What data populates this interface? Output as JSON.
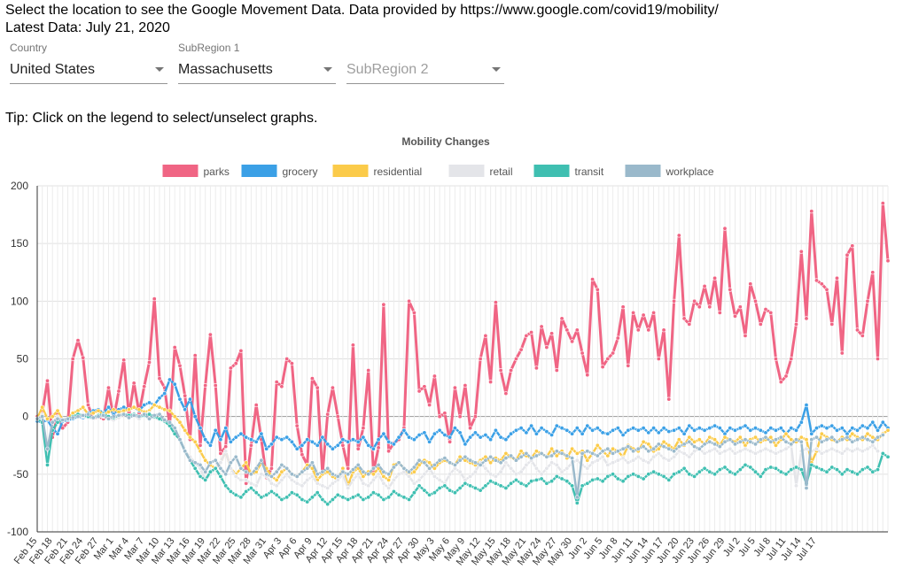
{
  "header": {
    "line1": "Select the location to see the Google Movement Data. Data provided by https://www.google.com/covid19/mobility/",
    "line2": "Latest Data: July 21, 2020"
  },
  "filters": {
    "country": {
      "label": "Country",
      "value": "United States"
    },
    "subregion1": {
      "label": "SubRegion 1",
      "value": "Massachusetts"
    },
    "subregion2": {
      "label": "",
      "placeholder": "SubRegion 2"
    }
  },
  "tip": "Tip: Click on the legend to select/unselect graphs.",
  "chart_data": {
    "type": "line",
    "title": "Mobility Changes",
    "xlabel": "",
    "ylabel": "",
    "ylim": [
      -100,
      200
    ],
    "yticks": [
      -100,
      -50,
      0,
      50,
      100,
      150,
      200
    ],
    "grid": true,
    "legend": "top",
    "x_start": "Feb 15",
    "x_end": "Jul 19",
    "x_tick_labels": [
      "Feb 15",
      "Feb 18",
      "Feb 21",
      "Feb 24",
      "Feb 27",
      "Mar 1",
      "Mar 4",
      "Mar 7",
      "Mar 10",
      "Mar 13",
      "Mar 16",
      "Mar 19",
      "Mar 22",
      "Mar 25",
      "Mar 28",
      "Mar 31",
      "Apr 3",
      "Apr 6",
      "Apr 9",
      "Apr 12",
      "Apr 15",
      "Apr 18",
      "Apr 21",
      "Apr 24",
      "Apr 27",
      "Apr 30",
      "May 3",
      "May 6",
      "May 9",
      "May 12",
      "May 15",
      "May 18",
      "May 21",
      "May 24",
      "May 27",
      "May 30",
      "Jun 2",
      "Jun 5",
      "Jun 8",
      "Jun 11",
      "Jun 14",
      "Jun 17",
      "Jun 20",
      "Jun 23",
      "Jun 26",
      "Jun 29",
      "Jul 2",
      "Jul 5",
      "Jul 8",
      "Jul 11",
      "Jul 14",
      "Jul 17"
    ],
    "series": [
      {
        "name": "parks",
        "color": "#f06584",
        "values": [
          0,
          3,
          31,
          -18,
          2,
          -10,
          -5,
          50,
          66,
          51,
          10,
          -2,
          0,
          -2,
          25,
          -2,
          22,
          49,
          1,
          29,
          3,
          26,
          47,
          102,
          33,
          25,
          -8,
          60,
          44,
          18,
          -20,
          53,
          -25,
          27,
          71,
          27,
          -32,
          -26,
          42,
          46,
          57,
          -58,
          -25,
          10,
          -20,
          -53,
          -45,
          30,
          26,
          50,
          46,
          -8,
          -33,
          -42,
          33,
          25,
          -50,
          2,
          25,
          0,
          -25,
          -45,
          62,
          -28,
          -10,
          40,
          -48,
          -27,
          97,
          -30,
          -23,
          -20,
          -10,
          100,
          90,
          22,
          26,
          10,
          35,
          0,
          3,
          -22,
          25,
          0,
          27,
          -10,
          0,
          50,
          70,
          30,
          99,
          40,
          20,
          40,
          50,
          58,
          70,
          73,
          42,
          78,
          60,
          72,
          40,
          85,
          75,
          65,
          75,
          55,
          36,
          119,
          110,
          43,
          50,
          55,
          68,
          95,
          44,
          90,
          75,
          88,
          75,
          90,
          50,
          75,
          15,
          100,
          157,
          85,
          80,
          100,
          95,
          113,
          95,
          120,
          90,
          163,
          110,
          87,
          95,
          70,
          115,
          100,
          80,
          93,
          90,
          50,
          30,
          35,
          50,
          80,
          143,
          85,
          178,
          118,
          115,
          110,
          80,
          120,
          55,
          140,
          148,
          75,
          70,
          100,
          125,
          50,
          185,
          135
        ]
      },
      {
        "name": "grocery",
        "color": "#3ba0e6",
        "values": [
          -4,
          -5,
          -3,
          -10,
          -15,
          -4,
          -3,
          -2,
          0,
          -1,
          3,
          5,
          6,
          3,
          8,
          2,
          6,
          8,
          6,
          8,
          5,
          10,
          12,
          10,
          16,
          20,
          32,
          28,
          15,
          6,
          15,
          0,
          -10,
          -20,
          -25,
          -12,
          -20,
          -10,
          -22,
          -18,
          -15,
          -18,
          -20,
          -22,
          -15,
          -28,
          -24,
          -18,
          -20,
          -18,
          -22,
          -28,
          -25,
          -20,
          -22,
          -25,
          -18,
          -24,
          -28,
          -25,
          -20,
          -22,
          -20,
          -22,
          -18,
          -25,
          -28,
          -20,
          -15,
          -22,
          -24,
          -18,
          -12,
          -18,
          -20,
          -16,
          -14,
          -22,
          -15,
          -12,
          -16,
          -18,
          -10,
          -14,
          -24,
          -18,
          -14,
          -18,
          -16,
          -20,
          -12,
          -18,
          -20,
          -15,
          -12,
          -10,
          -14,
          -8,
          -15,
          -10,
          -13,
          -16,
          -8,
          -10,
          -12,
          -15,
          -10,
          -15,
          -8,
          -12,
          -10,
          -14,
          -15,
          -12,
          -10,
          -16,
          -12,
          -10,
          -12,
          -10,
          -14,
          -10,
          -14,
          -10,
          -13,
          -12,
          -10,
          -15,
          -8,
          -12,
          -10,
          -12,
          -10,
          -8,
          -10,
          -15,
          -10,
          -12,
          -10,
          -8,
          -12,
          -10,
          -12,
          -14,
          -10,
          -12,
          -10,
          -15,
          -10,
          -12,
          -5,
          10,
          -15,
          -10,
          -8,
          -10,
          -8,
          -12,
          -10,
          -15,
          -10,
          -12,
          -8,
          -10,
          -5,
          -12,
          -5,
          -10
        ]
      },
      {
        "name": "residential",
        "color": "#fbcb4a",
        "values": [
          -2,
          8,
          -2,
          0,
          5,
          -3,
          -2,
          3,
          5,
          8,
          2,
          3,
          5,
          2,
          4,
          6,
          4,
          5,
          6,
          8,
          6,
          4,
          5,
          10,
          8,
          6,
          5,
          0,
          -5,
          -12,
          -18,
          -22,
          -30,
          -38,
          -42,
          -45,
          -40,
          -30,
          -45,
          -50,
          -45,
          -40,
          -50,
          -48,
          -40,
          -45,
          -52,
          -55,
          -48,
          -45,
          -50,
          -52,
          -48,
          -42,
          -45,
          -55,
          -50,
          -48,
          -52,
          -55,
          -45,
          -60,
          -48,
          -45,
          -52,
          -48,
          -50,
          -45,
          -52,
          -55,
          -42,
          -40,
          -45,
          -50,
          -48,
          -42,
          -38,
          -40,
          -45,
          -40,
          -38,
          -40,
          -42,
          -35,
          -38,
          -40,
          -42,
          -38,
          -35,
          -40,
          -36,
          -38,
          -32,
          -35,
          -38,
          -30,
          -34,
          -36,
          -30,
          -32,
          -35,
          -28,
          -34,
          -30,
          -36,
          -28,
          -32,
          -30,
          -38,
          -32,
          -25,
          -30,
          -34,
          -28,
          -30,
          -35,
          -25,
          -28,
          -30,
          -22,
          -24,
          -30,
          -28,
          -22,
          -25,
          -28,
          -20,
          -25,
          -18,
          -22,
          -20,
          -24,
          -18,
          -20,
          -25,
          -18,
          -20,
          -22,
          -18,
          -25,
          -20,
          -18,
          -22,
          -20,
          -18,
          -25,
          -20,
          -15,
          -20,
          -22,
          -18,
          -20,
          -40,
          -30,
          -15,
          -18,
          -20,
          -22,
          -18,
          -20,
          -15,
          -18,
          -20,
          -15,
          -18,
          -20,
          -15,
          -12
        ]
      },
      {
        "name": "retail",
        "color": "#e4e5e9",
        "values": [
          -2,
          2,
          -35,
          -5,
          0,
          -3,
          -2,
          -1,
          2,
          0,
          -1,
          -2,
          0,
          0,
          -2,
          -3,
          -1,
          2,
          0,
          1,
          -2,
          2,
          3,
          -1,
          -3,
          -2,
          -8,
          -15,
          -20,
          -30,
          -35,
          -40,
          -45,
          -55,
          -50,
          -45,
          -40,
          -30,
          -45,
          -52,
          -55,
          -55,
          -58,
          -60,
          -50,
          -52,
          -58,
          -60,
          -55,
          -50,
          -55,
          -58,
          -60,
          -55,
          -52,
          -58,
          -60,
          -62,
          -58,
          -55,
          -50,
          -62,
          -55,
          -50,
          -58,
          -60,
          -55,
          -50,
          -58,
          -62,
          -55,
          -50,
          -48,
          -52,
          -58,
          -55,
          -50,
          -45,
          -52,
          -55,
          -58,
          -50,
          -45,
          -48,
          -55,
          -52,
          -48,
          -40,
          -45,
          -50,
          -52,
          -48,
          -40,
          -45,
          -50,
          -48,
          -42,
          -38,
          -45,
          -50,
          -45,
          -40,
          -42,
          -48,
          -45,
          -40,
          -38,
          -42,
          -45,
          -40,
          -38,
          -35,
          -42,
          -40,
          -38,
          -36,
          -40,
          -38,
          -35,
          -38,
          -40,
          -35,
          -32,
          -36,
          -38,
          -35,
          -30,
          -32,
          -35,
          -30,
          -28,
          -32,
          -30,
          -28,
          -32,
          -30,
          -28,
          -32,
          -30,
          -28,
          -30,
          -32,
          -30,
          -28,
          -30,
          -32,
          -30,
          -28,
          -25,
          -60,
          -30,
          -28,
          -30,
          -28,
          -32,
          -30,
          -28,
          -30,
          -32,
          -28,
          -30,
          -28,
          -30,
          -28,
          -25,
          -30
        ]
      },
      {
        "name": "transit",
        "color": "#3fbfb1",
        "values": [
          -2,
          -5,
          -42,
          -12,
          -5,
          -3,
          -2,
          0,
          2,
          1,
          0,
          -1,
          1,
          2,
          0,
          -1,
          1,
          2,
          1,
          2,
          0,
          1,
          2,
          0,
          -2,
          -4,
          -8,
          -15,
          -20,
          -30,
          -38,
          -45,
          -52,
          -55,
          -48,
          -45,
          -52,
          -60,
          -65,
          -68,
          -70,
          -65,
          -62,
          -66,
          -70,
          -68,
          -65,
          -68,
          -72,
          -70,
          -66,
          -68,
          -72,
          -74,
          -70,
          -66,
          -72,
          -76,
          -72,
          -68,
          -70,
          -72,
          -70,
          -68,
          -72,
          -70,
          -66,
          -68,
          -72,
          -70,
          -65,
          -68,
          -70,
          -72,
          -66,
          -60,
          -64,
          -68,
          -66,
          -62,
          -60,
          -64,
          -66,
          -62,
          -58,
          -60,
          -62,
          -64,
          -60,
          -56,
          -58,
          -60,
          -62,
          -58,
          -55,
          -58,
          -60,
          -56,
          -55,
          -54,
          -58,
          -56,
          -52,
          -54,
          -56,
          -60,
          -75,
          -60,
          -58,
          -55,
          -54,
          -56,
          -52,
          -50,
          -54,
          -56,
          -52,
          -50,
          -52,
          -54,
          -50,
          -48,
          -50,
          -52,
          -55,
          -50,
          -48,
          -45,
          -50,
          -52,
          -48,
          -45,
          -48,
          -50,
          -46,
          -44,
          -48,
          -50,
          -46,
          -42,
          -44,
          -48,
          -52,
          -46,
          -44,
          -45,
          -48,
          -50,
          -46,
          -44,
          -46,
          -58,
          -42,
          -44,
          -46,
          -48,
          -44,
          -46,
          -50,
          -46,
          -48,
          -50,
          -46,
          -44,
          -48,
          -46,
          -32,
          -35
        ]
      },
      {
        "name": "workplace",
        "color": "#9ab9cb",
        "values": [
          -2,
          0,
          -28,
          -5,
          -2,
          -3,
          -2,
          -1,
          0,
          1,
          2,
          -1,
          0,
          1,
          -2,
          0,
          1,
          2,
          -1,
          1,
          0,
          2,
          -2,
          1,
          2,
          -3,
          -5,
          -10,
          -20,
          -30,
          -38,
          -40,
          -42,
          -48,
          -40,
          -38,
          -45,
          -50,
          -40,
          -35,
          -45,
          -48,
          -50,
          -45,
          -38,
          -50,
          -52,
          -48,
          -42,
          -45,
          -50,
          -52,
          -48,
          -45,
          -40,
          -50,
          -48,
          -45,
          -50,
          -52,
          -48,
          -50,
          -46,
          -42,
          -48,
          -50,
          -45,
          -42,
          -48,
          -50,
          -44,
          -40,
          -45,
          -48,
          -44,
          -38,
          -40,
          -45,
          -42,
          -38,
          -36,
          -40,
          -42,
          -38,
          -35,
          -38,
          -40,
          -42,
          -38,
          -35,
          -38,
          -40,
          -36,
          -34,
          -38,
          -35,
          -32,
          -36,
          -34,
          -32,
          -35,
          -34,
          -30,
          -32,
          -34,
          -36,
          -70,
          -32,
          -30,
          -32,
          -34,
          -30,
          -28,
          -32,
          -30,
          -28,
          -26,
          -30,
          -28,
          -26,
          -30,
          -28,
          -24,
          -26,
          -28,
          -30,
          -26,
          -24,
          -22,
          -26,
          -28,
          -24,
          -22,
          -24,
          -26,
          -22,
          -20,
          -24,
          -22,
          -20,
          -22,
          -24,
          -20,
          -18,
          -22,
          -20,
          -18,
          -22,
          -24,
          -20,
          -22,
          -62,
          -20,
          -18,
          -22,
          -20,
          -18,
          -22,
          -20,
          -18,
          -22,
          -20,
          -18,
          -20,
          -22,
          -18,
          -16
        ]
      }
    ]
  }
}
